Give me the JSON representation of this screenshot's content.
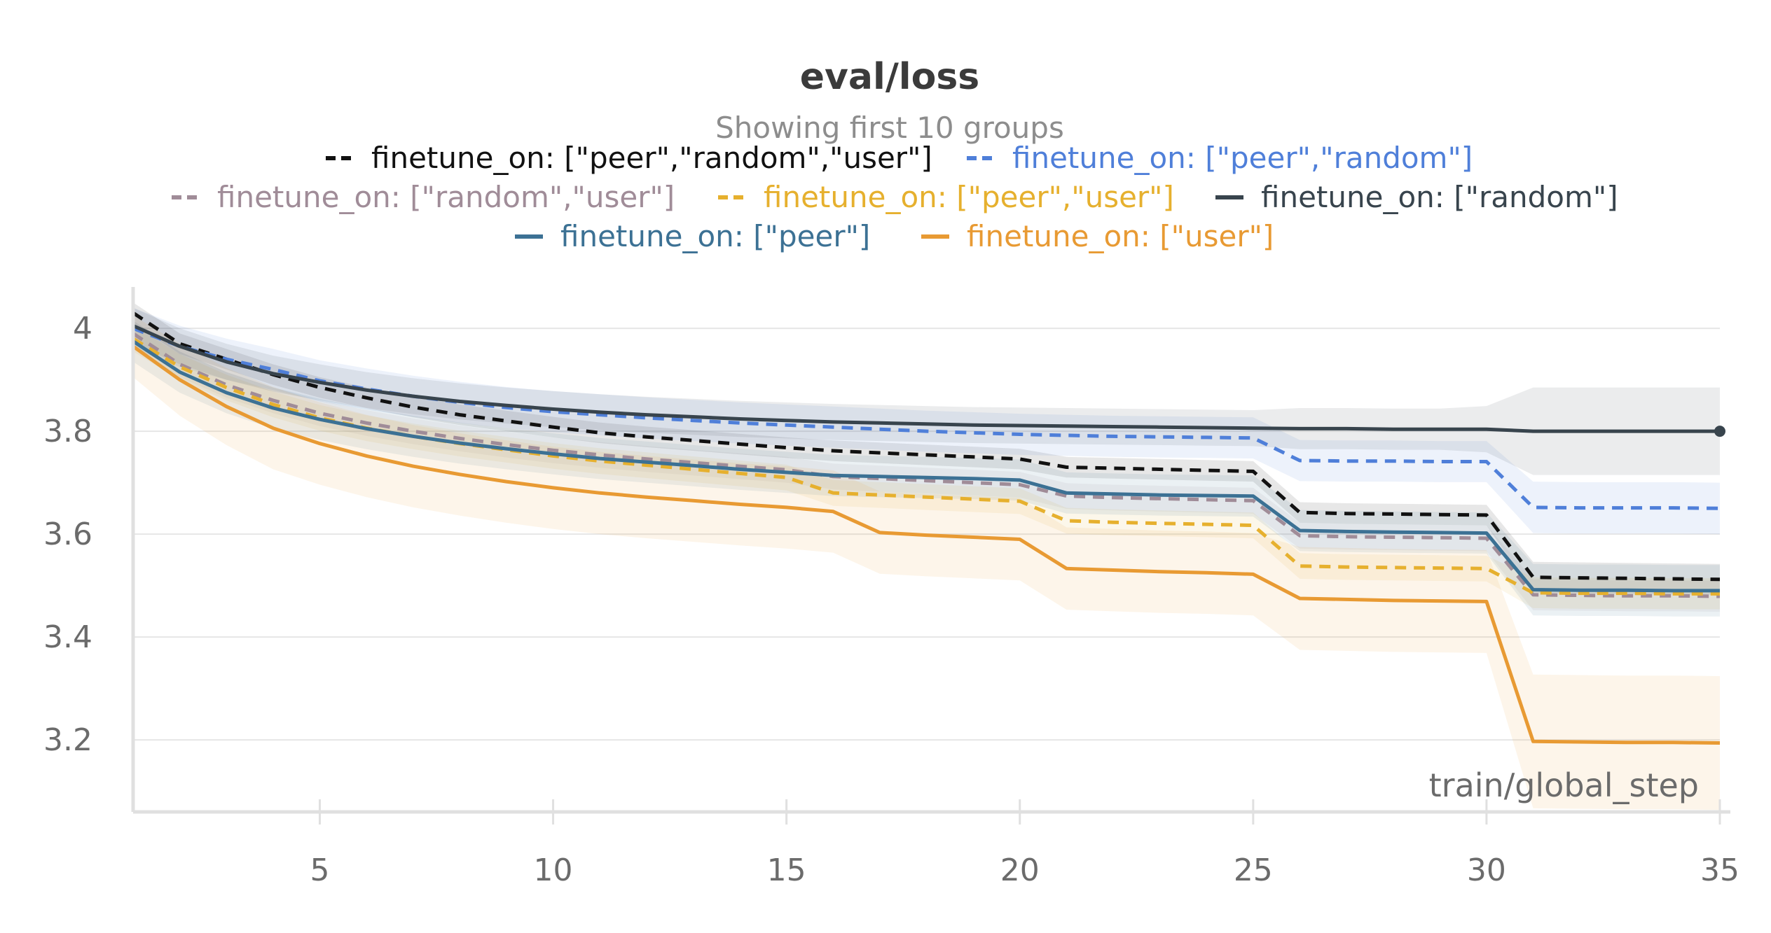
{
  "chart_data": {
    "type": "line",
    "title": "eval/loss",
    "subtitle": "Showing first 10 groups",
    "xlabel": "train/global_step",
    "ylabel": "",
    "xlim": [
      1,
      35
    ],
    "ylim": [
      3.06,
      4.06
    ],
    "xticks": [
      5,
      10,
      15,
      20,
      25,
      30,
      35
    ],
    "yticks": [
      3.2,
      3.4,
      3.6,
      3.8,
      4
    ],
    "ytick_labels": [
      "3.2",
      "3.4",
      "3.6",
      "3.8",
      "4"
    ],
    "x": [
      1,
      2,
      3,
      4,
      5,
      6,
      7,
      8,
      9,
      10,
      11,
      12,
      13,
      14,
      15,
      16,
      17,
      18,
      19,
      20,
      21,
      22,
      23,
      24,
      25,
      26,
      27,
      28,
      29,
      30,
      31,
      32,
      33,
      34,
      35
    ],
    "series": [
      {
        "name": "finetune_on: [\"peer\",\"random\",\"user\"]",
        "color": "#111111",
        "dash": true,
        "values": [
          4.03,
          3.97,
          3.94,
          3.91,
          3.885,
          3.865,
          3.847,
          3.832,
          3.82,
          3.808,
          3.797,
          3.789,
          3.782,
          3.775,
          3.768,
          3.762,
          3.758,
          3.754,
          3.75,
          3.746,
          3.73,
          3.728,
          3.726,
          3.724,
          3.722,
          3.642,
          3.64,
          3.639,
          3.638,
          3.637,
          3.516,
          3.515,
          3.514,
          3.513,
          3.512
        ],
        "band": [
          0.02,
          0.02,
          0.02,
          0.02,
          0.02,
          0.02,
          0.02,
          0.02,
          0.02,
          0.02,
          0.02,
          0.02,
          0.02,
          0.02,
          0.02,
          0.02,
          0.02,
          0.02,
          0.02,
          0.02,
          0.02,
          0.02,
          0.02,
          0.02,
          0.02,
          0.02,
          0.02,
          0.02,
          0.02,
          0.02,
          0.03,
          0.03,
          0.03,
          0.03,
          0.03
        ]
      },
      {
        "name": "finetune_on: [\"peer\",\"random\"]",
        "color": "#4f7fd9",
        "dash": true,
        "values": [
          4.0,
          3.965,
          3.94,
          3.92,
          3.898,
          3.882,
          3.868,
          3.856,
          3.846,
          3.838,
          3.832,
          3.826,
          3.821,
          3.816,
          3.812,
          3.808,
          3.804,
          3.8,
          3.797,
          3.794,
          3.792,
          3.79,
          3.789,
          3.788,
          3.787,
          3.743,
          3.742,
          3.742,
          3.741,
          3.741,
          3.652,
          3.651,
          3.651,
          3.651,
          3.65
        ],
        "band": [
          0.04,
          0.04,
          0.04,
          0.04,
          0.04,
          0.04,
          0.04,
          0.04,
          0.04,
          0.04,
          0.04,
          0.04,
          0.04,
          0.04,
          0.04,
          0.04,
          0.04,
          0.04,
          0.04,
          0.04,
          0.04,
          0.04,
          0.04,
          0.04,
          0.04,
          0.04,
          0.04,
          0.04,
          0.04,
          0.04,
          0.05,
          0.05,
          0.05,
          0.05,
          0.05
        ]
      },
      {
        "name": "finetune_on: [\"random\",\"user\"]",
        "color": "#a08c98",
        "dash": true,
        "values": [
          3.99,
          3.93,
          3.89,
          3.86,
          3.835,
          3.816,
          3.8,
          3.786,
          3.774,
          3.763,
          3.754,
          3.746,
          3.739,
          3.732,
          3.725,
          3.712,
          3.708,
          3.704,
          3.7,
          3.696,
          3.674,
          3.671,
          3.669,
          3.667,
          3.665,
          3.597,
          3.595,
          3.594,
          3.593,
          3.592,
          3.482,
          3.481,
          3.48,
          3.48,
          3.479
        ],
        "band": [
          0.025,
          0.025,
          0.025,
          0.025,
          0.025,
          0.025,
          0.025,
          0.025,
          0.025,
          0.025,
          0.025,
          0.025,
          0.025,
          0.025,
          0.025,
          0.025,
          0.025,
          0.025,
          0.025,
          0.025,
          0.025,
          0.025,
          0.025,
          0.025,
          0.025,
          0.025,
          0.025,
          0.025,
          0.025,
          0.025,
          0.03,
          0.03,
          0.03,
          0.03,
          0.03
        ]
      },
      {
        "name": "finetune_on: [\"peer\",\"user\"]",
        "color": "#e6b02e",
        "dash": true,
        "values": [
          3.98,
          3.925,
          3.885,
          3.852,
          3.826,
          3.806,
          3.79,
          3.776,
          3.764,
          3.752,
          3.742,
          3.734,
          3.726,
          3.718,
          3.71,
          3.68,
          3.676,
          3.672,
          3.668,
          3.664,
          3.626,
          3.623,
          3.621,
          3.619,
          3.617,
          3.538,
          3.536,
          3.535,
          3.534,
          3.533,
          3.486,
          3.485,
          3.485,
          3.484,
          3.484
        ],
        "band": [
          0.025,
          0.025,
          0.025,
          0.025,
          0.025,
          0.025,
          0.025,
          0.025,
          0.025,
          0.025,
          0.025,
          0.025,
          0.025,
          0.025,
          0.025,
          0.025,
          0.025,
          0.025,
          0.025,
          0.025,
          0.025,
          0.025,
          0.025,
          0.025,
          0.025,
          0.025,
          0.025,
          0.025,
          0.025,
          0.025,
          0.03,
          0.03,
          0.03,
          0.03,
          0.03
        ]
      },
      {
        "name": "finetune_on: [\"random\"]",
        "color": "#38444d",
        "dash": false,
        "values": [
          4.005,
          3.965,
          3.935,
          3.912,
          3.895,
          3.88,
          3.868,
          3.858,
          3.85,
          3.843,
          3.837,
          3.832,
          3.828,
          3.824,
          3.821,
          3.818,
          3.816,
          3.814,
          3.812,
          3.811,
          3.81,
          3.809,
          3.808,
          3.807,
          3.806,
          3.805,
          3.805,
          3.804,
          3.804,
          3.804,
          3.8,
          3.8,
          3.8,
          3.8,
          3.8
        ],
        "band": [
          0.035,
          0.035,
          0.035,
          0.035,
          0.035,
          0.035,
          0.035,
          0.035,
          0.035,
          0.035,
          0.035,
          0.035,
          0.035,
          0.035,
          0.035,
          0.035,
          0.035,
          0.035,
          0.035,
          0.035,
          0.035,
          0.035,
          0.035,
          0.035,
          0.035,
          0.04,
          0.04,
          0.04,
          0.04,
          0.045,
          0.085,
          0.085,
          0.085,
          0.085,
          0.085
        ]
      },
      {
        "name": "finetune_on: [\"peer\"]",
        "color": "#3c7194",
        "dash": false,
        "values": [
          3.975,
          3.915,
          3.875,
          3.845,
          3.823,
          3.805,
          3.79,
          3.777,
          3.766,
          3.756,
          3.747,
          3.74,
          3.733,
          3.726,
          3.72,
          3.714,
          3.712,
          3.71,
          3.708,
          3.705,
          3.68,
          3.678,
          3.676,
          3.675,
          3.674,
          3.607,
          3.605,
          3.604,
          3.603,
          3.602,
          3.492,
          3.491,
          3.491,
          3.49,
          3.49
        ],
        "band": [
          0.04,
          0.04,
          0.04,
          0.04,
          0.04,
          0.04,
          0.04,
          0.04,
          0.04,
          0.04,
          0.04,
          0.04,
          0.04,
          0.04,
          0.04,
          0.04,
          0.04,
          0.04,
          0.04,
          0.04,
          0.04,
          0.04,
          0.04,
          0.04,
          0.04,
          0.04,
          0.04,
          0.04,
          0.04,
          0.04,
          0.05,
          0.05,
          0.05,
          0.05,
          0.05
        ]
      },
      {
        "name": "finetune_on: [\"user\"]",
        "color": "#e89a33",
        "dash": false,
        "values": [
          3.965,
          3.9,
          3.848,
          3.806,
          3.776,
          3.752,
          3.732,
          3.716,
          3.702,
          3.69,
          3.68,
          3.672,
          3.665,
          3.658,
          3.652,
          3.644,
          3.603,
          3.598,
          3.594,
          3.59,
          3.533,
          3.53,
          3.527,
          3.525,
          3.522,
          3.475,
          3.473,
          3.471,
          3.47,
          3.469,
          3.197,
          3.196,
          3.195,
          3.195,
          3.194
        ],
        "band": [
          0.06,
          0.07,
          0.075,
          0.08,
          0.08,
          0.08,
          0.08,
          0.08,
          0.08,
          0.08,
          0.08,
          0.08,
          0.08,
          0.08,
          0.08,
          0.08,
          0.08,
          0.08,
          0.08,
          0.08,
          0.08,
          0.08,
          0.08,
          0.08,
          0.08,
          0.1,
          0.1,
          0.1,
          0.1,
          0.1,
          0.13,
          0.13,
          0.13,
          0.13,
          0.13
        ]
      }
    ],
    "legend_placement": "top-center",
    "grid": true
  }
}
